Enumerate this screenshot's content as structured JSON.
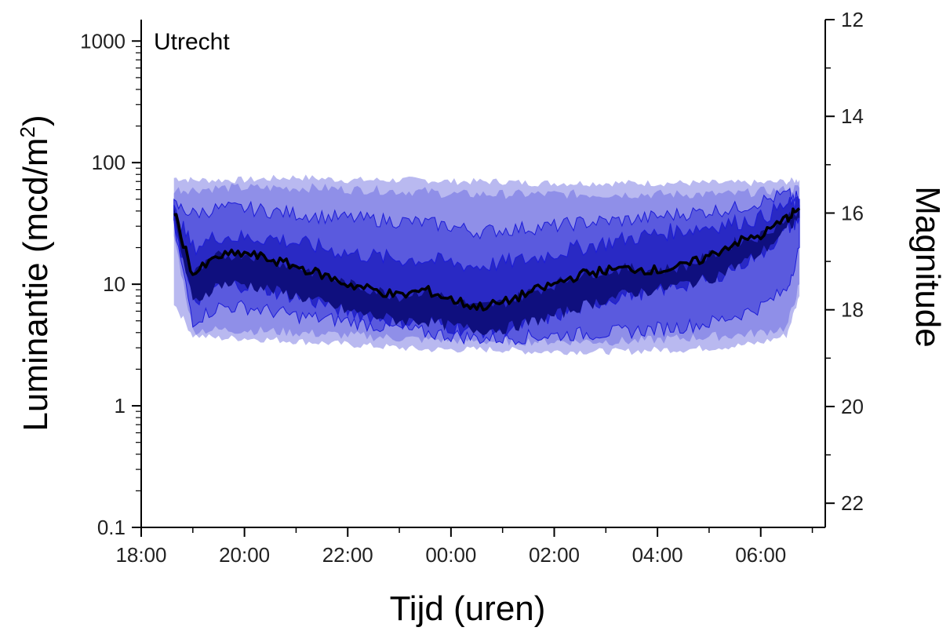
{
  "chart_data": {
    "type": "area",
    "annotation": "Utrecht",
    "xlabel": "Tijd (uren)",
    "ylabel_left": "Luminantie (mcd/m",
    "ylabel_left_superscript": "2",
    "ylabel_right": "Magnitude",
    "x_scale": "time (hours after 18:00)",
    "x_ticks": [
      "18:00",
      "20:00",
      "22:00",
      "00:00",
      "02:00",
      "04:00",
      "06:00"
    ],
    "x_range": [
      "18:00",
      "07:15"
    ],
    "y_left_scale": "log",
    "y_left_range": [
      0.1,
      1500
    ],
    "y_left_ticks": [
      "0.1",
      "1",
      "10",
      "100",
      "1000"
    ],
    "y_right_scale": "magnitude (reversed)",
    "y_right_range": [
      22.5,
      12
    ],
    "y_right_ticks": [
      "12",
      "14",
      "16",
      "18",
      "20",
      "22"
    ],
    "grid": false,
    "colors": {
      "band_outer": "#b9b9f0",
      "band_mid_light": "#8f8fe8",
      "band_mid": "#5a5ade",
      "band_inner": "#2929c4",
      "band_core": "#0f0f7e",
      "median": "#000000",
      "band_outline": "#1c1cd8"
    },
    "x": [
      "18:38",
      "19:00",
      "19:30",
      "20:00",
      "20:30",
      "21:00",
      "21:30",
      "22:00",
      "22:30",
      "23:00",
      "23:30",
      "00:00",
      "00:30",
      "01:00",
      "01:30",
      "02:00",
      "02:30",
      "03:00",
      "03:30",
      "04:00",
      "04:30",
      "05:00",
      "05:30",
      "06:00",
      "06:30",
      "06:45"
    ],
    "series": [
      {
        "name": "",
        "role": "outer-upper",
        "values": [
          75,
          72,
          72,
          72,
          74,
          76,
          74,
          72,
          72,
          72,
          72,
          70,
          70,
          70,
          68,
          68,
          68,
          68,
          68,
          68,
          68,
          68,
          68,
          68,
          70,
          72
        ]
      },
      {
        "name": "",
        "role": "mid-upper",
        "values": [
          60,
          60,
          62,
          62,
          62,
          62,
          62,
          60,
          60,
          58,
          58,
          55,
          55,
          55,
          55,
          55,
          55,
          55,
          55,
          55,
          55,
          55,
          55,
          58,
          60,
          62
        ]
      },
      {
        "name": "",
        "role": "inner-upper",
        "values": [
          45,
          38,
          42,
          42,
          40,
          38,
          36,
          35,
          34,
          33,
          32,
          30,
          27,
          28,
          29,
          30,
          32,
          33,
          34,
          36,
          38,
          40,
          42,
          48,
          55,
          50
        ]
      },
      {
        "name": "",
        "role": "core-upper",
        "values": [
          40,
          20,
          25,
          24,
          24,
          22,
          20,
          18,
          17,
          16,
          16,
          15,
          14,
          15,
          16,
          18,
          20,
          22,
          24,
          26,
          28,
          30,
          32,
          35,
          45,
          45
        ]
      },
      {
        "name": "",
        "role": "median",
        "values": [
          40,
          12,
          17,
          18,
          16,
          14,
          12,
          10,
          9,
          8,
          9,
          7.5,
          6.5,
          7,
          8.5,
          10,
          12,
          13,
          13.5,
          13,
          14,
          17,
          22,
          25,
          35,
          42
        ]
      },
      {
        "name": "",
        "role": "core-lower",
        "values": [
          35,
          7,
          10,
          10,
          9,
          8,
          7,
          6,
          5.5,
          5,
          5,
          4.5,
          4.2,
          4.3,
          4.8,
          5.5,
          6.5,
          7.5,
          8.5,
          9,
          10,
          11,
          14,
          18,
          28,
          35
        ]
      },
      {
        "name": "",
        "role": "inner-lower",
        "values": [
          30,
          5,
          6.5,
          6.5,
          6,
          5.5,
          5.2,
          5,
          4.6,
          4.3,
          4,
          3.8,
          3.6,
          3.6,
          3.7,
          3.8,
          3.9,
          4,
          4.1,
          4.3,
          4.5,
          4.8,
          5.5,
          6.5,
          9,
          20
        ]
      },
      {
        "name": "",
        "role": "mid-lower",
        "values": [
          25,
          4.2,
          4.2,
          4.2,
          4.1,
          4,
          3.9,
          3.8,
          3.7,
          3.6,
          3.5,
          3.5,
          3.4,
          3.4,
          3.4,
          3.4,
          3.4,
          3.4,
          3.4,
          3.5,
          3.6,
          3.7,
          3.8,
          4,
          4.4,
          10
        ]
      },
      {
        "name": "",
        "role": "outer-lower",
        "values": [
          7,
          3.8,
          3.6,
          3.6,
          3.5,
          3.4,
          3.3,
          3.2,
          3.1,
          3,
          2.9,
          2.9,
          2.9,
          2.9,
          2.8,
          2.8,
          2.8,
          2.8,
          2.8,
          2.9,
          2.9,
          3,
          3.1,
          3.3,
          3.8,
          8
        ]
      }
    ]
  }
}
